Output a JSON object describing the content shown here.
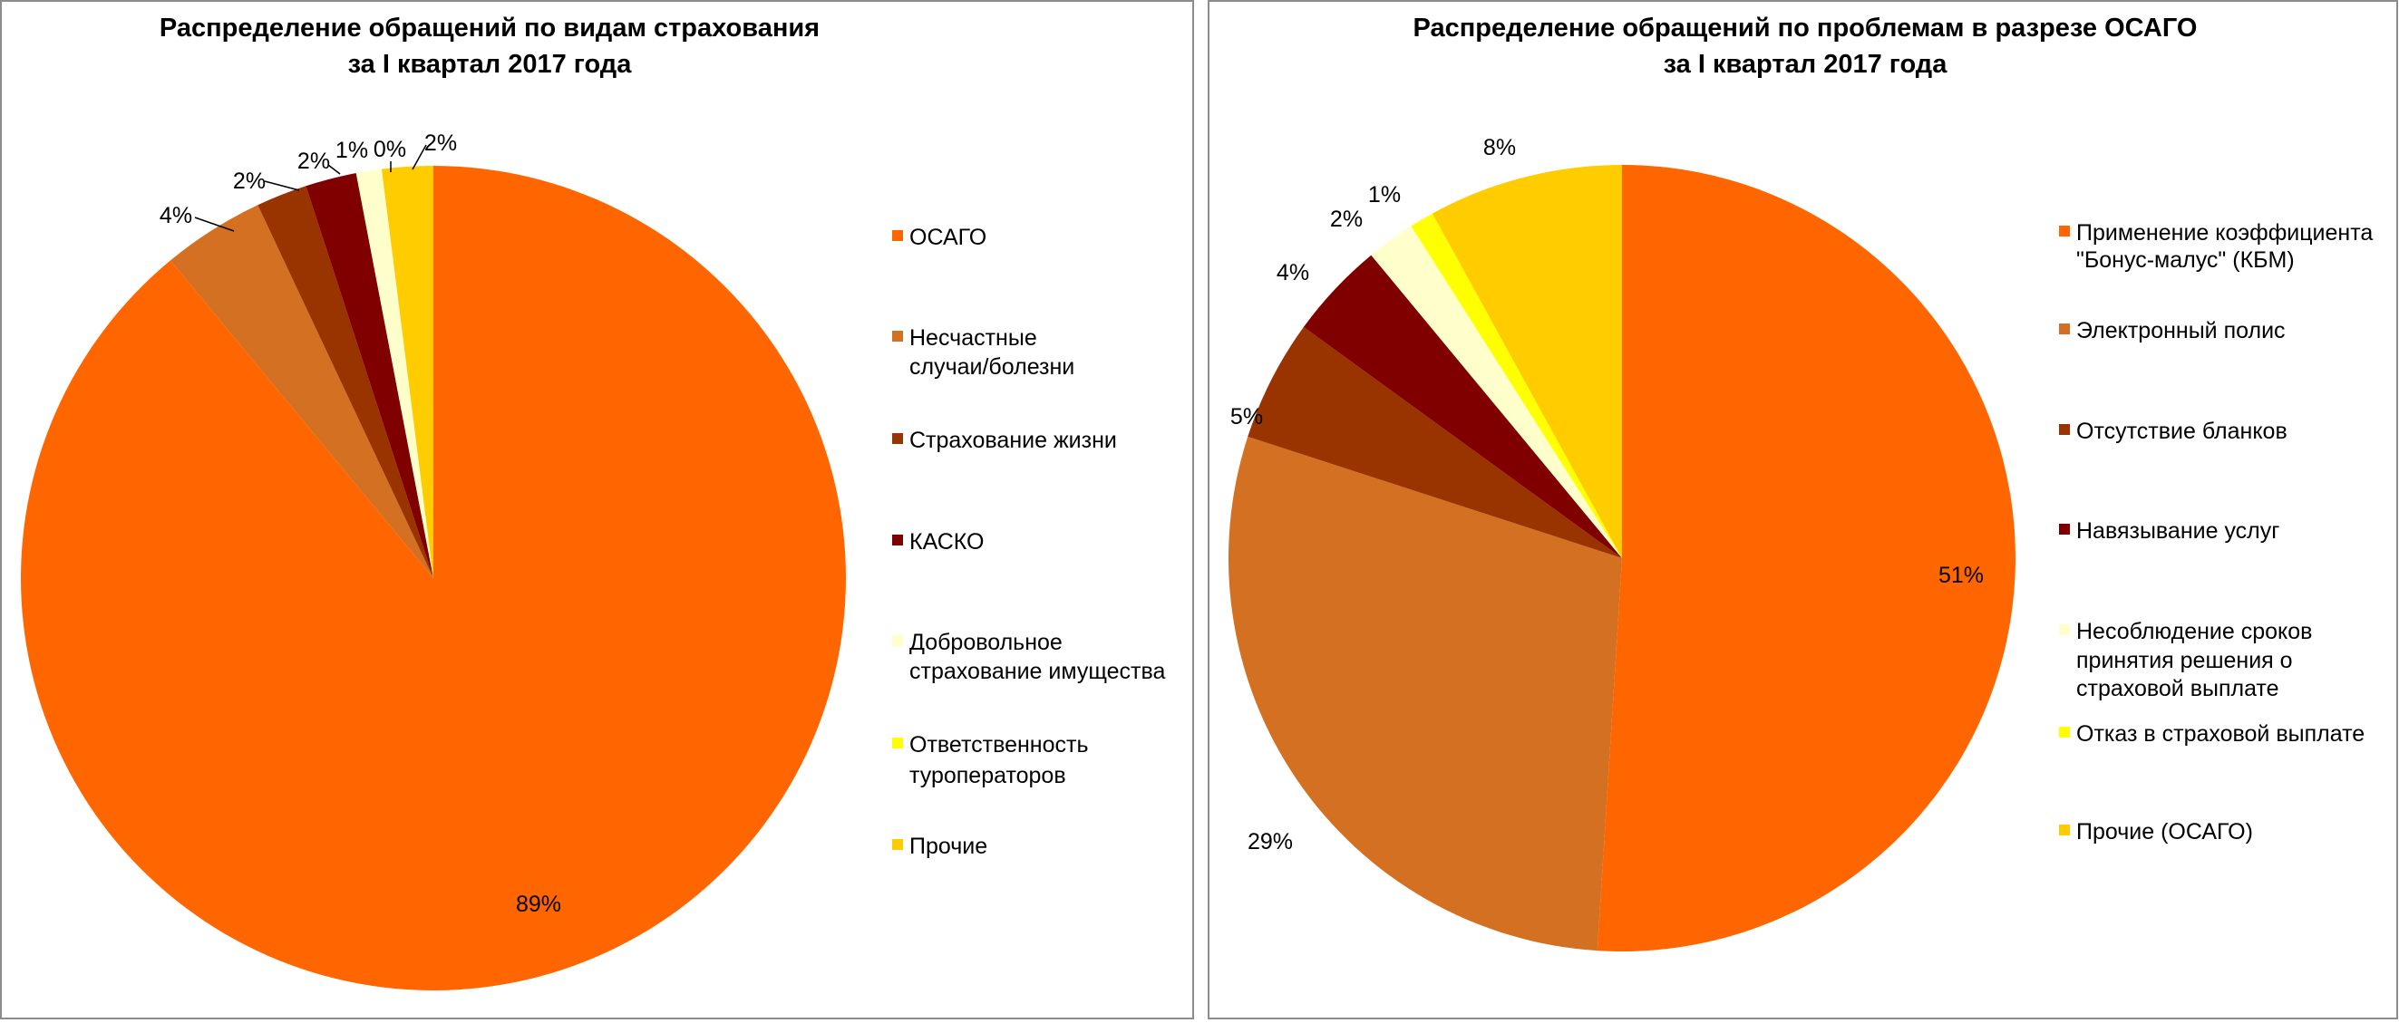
{
  "chart_data": [
    {
      "type": "pie",
      "title": [
        "Распределение обращений по видам страхования",
        "за I квартал 2017 года"
      ],
      "legend_position": "right",
      "categories": [
        "ОСАГО",
        "Несчастные случаи/болезни",
        "Страхование жизни",
        "КАСКО",
        "Добровольное страхование имущества",
        "Ответственность туроператоров",
        "Прочие"
      ],
      "legend_lines": [
        [
          "ОСАГО"
        ],
        [
          "Несчастные",
          "случаи/болезни"
        ],
        [
          "Страхование жизни"
        ],
        [
          "КАСКО"
        ],
        [
          "Добровольное",
          "страхование имущества"
        ],
        [
          "Ответственность",
          "туроператоров"
        ],
        [
          "Прочие"
        ]
      ],
      "values": [
        89,
        4,
        2,
        2,
        1,
        0,
        2
      ],
      "labels": [
        "89%",
        "4%",
        "2%",
        "2%",
        "1%",
        "0%",
        "2%"
      ],
      "colors": [
        "#FF6600",
        "#D47021",
        "#993300",
        "#800000",
        "#FFFFCC",
        "#FFFF00",
        "#FFCC00"
      ]
    },
    {
      "type": "pie",
      "title": [
        "Распределение обращений по проблемам в разрезе ОСАГО",
        "за I квартал 2017 года"
      ],
      "legend_position": "right",
      "categories": [
        "Применение коэффициента \"Бонус-малус\" (КБМ)",
        "Электронный полис",
        "Отсутствие бланков",
        "Навязывание услуг",
        "Несоблюдение сроков принятия решения о страховой выплате",
        "Отказ в страховой выплате",
        "Прочие (ОСАГО)"
      ],
      "legend_lines": [
        [
          "Применение коэффициента",
          "\"Бонус-малус\" (КБМ)"
        ],
        [
          "Электронный полис"
        ],
        [
          "Отсутствие бланков"
        ],
        [
          "Навязывание услуг"
        ],
        [
          "Несоблюдение сроков",
          "принятия решения о",
          "страховой выплате"
        ],
        [
          "Отказ в страховой выплате"
        ],
        [
          "Прочие (ОСАГО)"
        ]
      ],
      "values": [
        51,
        29,
        5,
        4,
        2,
        1,
        8
      ],
      "labels": [
        "51%",
        "29%",
        "5%",
        "4%",
        "2%",
        "1%",
        "8%"
      ],
      "colors": [
        "#FF6600",
        "#D47021",
        "#993300",
        "#800000",
        "#FFFFCC",
        "#FFFF00",
        "#FFCC00"
      ]
    }
  ]
}
